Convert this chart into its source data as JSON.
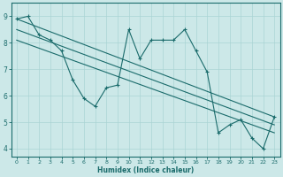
{
  "xlabel": "Humidex (Indice chaleur)",
  "bg_color": "#cce8e8",
  "line_color": "#1a6b6b",
  "grid_color": "#aad4d4",
  "xlim": [
    -0.5,
    23.5
  ],
  "ylim": [
    3.7,
    9.5
  ],
  "xticks": [
    0,
    1,
    2,
    3,
    4,
    5,
    6,
    7,
    8,
    9,
    10,
    11,
    12,
    13,
    14,
    15,
    16,
    17,
    18,
    19,
    20,
    21,
    22,
    23
  ],
  "yticks": [
    4,
    5,
    6,
    7,
    8,
    9
  ],
  "series_main": {
    "x": [
      0,
      1,
      2,
      3,
      4,
      5,
      6,
      7,
      8,
      9,
      10,
      11,
      12,
      13,
      14,
      15,
      16,
      17,
      18,
      19,
      20,
      21,
      22,
      23
    ],
    "y": [
      8.9,
      9.0,
      8.3,
      8.1,
      7.7,
      6.6,
      5.9,
      5.6,
      6.3,
      6.4,
      8.5,
      7.4,
      8.1,
      8.1,
      8.1,
      8.5,
      7.7,
      6.9,
      4.6,
      4.9,
      5.1,
      4.4,
      4.0,
      5.2
    ]
  },
  "series_lines": [
    {
      "x": [
        0,
        23
      ],
      "y": [
        8.9,
        5.2
      ]
    },
    {
      "x": [
        0,
        23
      ],
      "y": [
        8.5,
        4.9
      ]
    },
    {
      "x": [
        0,
        23
      ],
      "y": [
        8.1,
        4.6
      ]
    }
  ]
}
